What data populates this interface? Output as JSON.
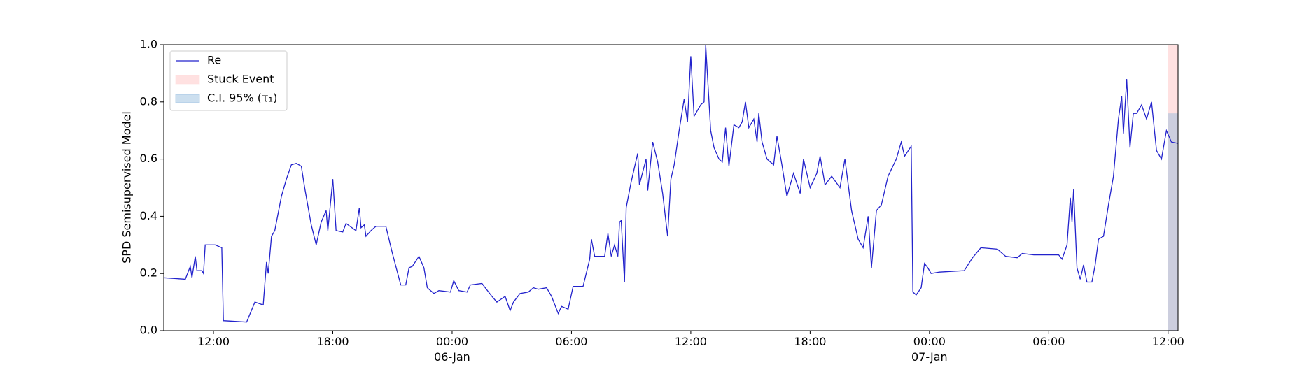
{
  "chart_data": {
    "type": "line",
    "y_label": "SPD Semisupervised Model",
    "xlim": [
      "1900-01-05 09:30",
      "1900-01-07 12:30"
    ],
    "xticks": [
      {
        "value": "1900-01-05 12:00",
        "label": "12:00"
      },
      {
        "value": "1900-01-05 18:00",
        "label": "18:00"
      },
      {
        "value": "1900-01-06 00:00",
        "label": "00:00\n06-Jan\n1900"
      },
      {
        "value": "1900-01-06 06:00",
        "label": "06:00"
      },
      {
        "value": "1900-01-06 12:00",
        "label": "12:00"
      },
      {
        "value": "1900-01-06 18:00",
        "label": "18:00"
      },
      {
        "value": "1900-01-07 00:00",
        "label": "00:00\n07-Jan"
      },
      {
        "value": "1900-01-07 06:00",
        "label": "06:00"
      },
      {
        "value": "1900-01-07 12:00",
        "label": "12:00"
      }
    ],
    "ylim": [
      0,
      1
    ],
    "yticks": [
      {
        "value": 0,
        "label": "0.0"
      },
      0.2,
      0.4,
      0.6,
      0.8,
      {
        "value": 1,
        "label": "1.0"
      }
    ],
    "legend": "upper left",
    "x": [
      "1900-01-05 09:30",
      "1900-01-05 10:35",
      "1900-01-05 10:50",
      "1900-01-05 10:55",
      "1900-01-05 11:05",
      "1900-01-05 11:10",
      "1900-01-05 11:25",
      "1900-01-05 11:30",
      "1900-01-05 11:35",
      "1900-01-05 12:05",
      "1900-01-05 12:25",
      "1900-01-05 12:30",
      "1900-01-05 13:40",
      "1900-01-05 14:05",
      "1900-01-05 14:30",
      "1900-01-05 14:40",
      "1900-01-05 14:45",
      "1900-01-05 14:55",
      "1900-01-05 15:05",
      "1900-01-05 15:25",
      "1900-01-05 15:40",
      "1900-01-05 15:55",
      "1900-01-05 16:10",
      "1900-01-05 16:25",
      "1900-01-05 16:35",
      "1900-01-05 16:55",
      "1900-01-05 17:10",
      "1900-01-05 17:25",
      "1900-01-05 17:40",
      "1900-01-05 17:45",
      "1900-01-05 18:00",
      "1900-01-05 18:10",
      "1900-01-05 18:30",
      "1900-01-05 18:40",
      "1900-01-05 19:10",
      "1900-01-05 19:20",
      "1900-01-05 19:25",
      "1900-01-05 19:35",
      "1900-01-05 19:40",
      "1900-01-05 19:55",
      "1900-01-05 20:10",
      "1900-01-05 20:40",
      "1900-01-05 21:00",
      "1900-01-05 21:25",
      "1900-01-05 21:40",
      "1900-01-05 21:50",
      "1900-01-05 22:00",
      "1900-01-05 22:20",
      "1900-01-05 22:35",
      "1900-01-05 22:45",
      "1900-01-05 23:05",
      "1900-01-05 23:20",
      "1900-01-05 23:55",
      "1900-01-06 00:05",
      "1900-01-06 00:20",
      "1900-01-06 00:45",
      "1900-01-06 00:55",
      "1900-01-06 01:30",
      "1900-01-06 01:40",
      "1900-01-06 02:00",
      "1900-01-06 02:15",
      "1900-01-06 02:40",
      "1900-01-06 02:55",
      "1900-01-06 03:05",
      "1900-01-06 03:25",
      "1900-01-06 03:50",
      "1900-01-06 04:05",
      "1900-01-06 04:20",
      "1900-01-06 04:45",
      "1900-01-06 05:00",
      "1900-01-06 05:20",
      "1900-01-06 05:30",
      "1900-01-06 05:50",
      "1900-01-06 06:05",
      "1900-01-06 06:35",
      "1900-01-06 06:55",
      "1900-01-06 07:00",
      "1900-01-06 07:10",
      "1900-01-06 07:40",
      "1900-01-06 07:50",
      "1900-01-06 08:00",
      "1900-01-06 08:10",
      "1900-01-06 08:20",
      "1900-01-06 08:25",
      "1900-01-06 08:30",
      "1900-01-06 08:40",
      "1900-01-06 08:45",
      "1900-01-06 09:00",
      "1900-01-06 09:20",
      "1900-01-06 09:25",
      "1900-01-06 09:45",
      "1900-01-06 09:50",
      "1900-01-06 10:05",
      "1900-01-06 10:20",
      "1900-01-06 10:35",
      "1900-01-06 10:50",
      "1900-01-06 11:00",
      "1900-01-06 11:10",
      "1900-01-06 11:25",
      "1900-01-06 11:40",
      "1900-01-06 11:50",
      "1900-01-06 12:00",
      "1900-01-06 12:10",
      "1900-01-06 12:30",
      "1900-01-06 12:40",
      "1900-01-06 12:45",
      "1900-01-06 13:00",
      "1900-01-06 13:10",
      "1900-01-06 13:25",
      "1900-01-06 13:35",
      "1900-01-06 13:45",
      "1900-01-06 13:55",
      "1900-01-06 14:10",
      "1900-01-06 14:25",
      "1900-01-06 14:35",
      "1900-01-06 14:45",
      "1900-01-06 14:55",
      "1900-01-06 15:10",
      "1900-01-06 15:20",
      "1900-01-06 15:25",
      "1900-01-06 15:35",
      "1900-01-06 15:50",
      "1900-01-06 16:10",
      "1900-01-06 16:20",
      "1900-01-06 16:35",
      "1900-01-06 16:50",
      "1900-01-06 17:10",
      "1900-01-06 17:30",
      "1900-01-06 17:40",
      "1900-01-06 18:00",
      "1900-01-06 18:20",
      "1900-01-06 18:30",
      "1900-01-06 18:45",
      "1900-01-06 19:05",
      "1900-01-06 19:30",
      "1900-01-06 19:45",
      "1900-01-06 20:05",
      "1900-01-06 20:25",
      "1900-01-06 20:40",
      "1900-01-06 20:55",
      "1900-01-06 21:05",
      "1900-01-06 21:20",
      "1900-01-06 21:35",
      "1900-01-06 21:55",
      "1900-01-06 22:20",
      "1900-01-06 22:35",
      "1900-01-06 22:45",
      "1900-01-06 23:05",
      "1900-01-06 23:10",
      "1900-01-06 23:20",
      "1900-01-06 23:35",
      "1900-01-06 23:45",
      "1900-01-06 23:55",
      "1900-01-07 00:05",
      "1900-01-07 00:30",
      "1900-01-07 01:45",
      "1900-01-07 02:10",
      "1900-01-07 02:35",
      "1900-01-07 03:25",
      "1900-01-07 03:50",
      "1900-01-07 04:25",
      "1900-01-07 04:40",
      "1900-01-07 05:15",
      "1900-01-07 06:30",
      "1900-01-07 06:40",
      "1900-01-07 06:55",
      "1900-01-07 07:05",
      "1900-01-07 07:10",
      "1900-01-07 07:15",
      "1900-01-07 07:25",
      "1900-01-07 07:35",
      "1900-01-07 07:45",
      "1900-01-07 07:55",
      "1900-01-07 08:10",
      "1900-01-07 08:20",
      "1900-01-07 08:30",
      "1900-01-07 08:45",
      "1900-01-07 09:00",
      "1900-01-07 09:15",
      "1900-01-07 09:30",
      "1900-01-07 09:40",
      "1900-01-07 09:45",
      "1900-01-07 09:55",
      "1900-01-07 10:05",
      "1900-01-07 10:15",
      "1900-01-07 10:25",
      "1900-01-07 10:40",
      "1900-01-07 10:55",
      "1900-01-07 11:10",
      "1900-01-07 11:25",
      "1900-01-07 11:40",
      "1900-01-07 11:55",
      "1900-01-07 12:10",
      "1900-01-07 12:30"
    ],
    "series": [
      {
        "name": "Re",
        "color": "#2222cc",
        "values": [
          0.185,
          0.18,
          0.225,
          0.185,
          0.26,
          0.21,
          0.21,
          0.2,
          0.3,
          0.3,
          0.29,
          0.035,
          0.03,
          0.1,
          0.09,
          0.24,
          0.2,
          0.33,
          0.35,
          0.47,
          0.53,
          0.58,
          0.585,
          0.575,
          0.5,
          0.37,
          0.3,
          0.38,
          0.42,
          0.35,
          0.53,
          0.35,
          0.345,
          0.375,
          0.35,
          0.43,
          0.36,
          0.37,
          0.33,
          0.35,
          0.365,
          0.365,
          0.27,
          0.16,
          0.16,
          0.22,
          0.225,
          0.26,
          0.22,
          0.15,
          0.13,
          0.14,
          0.135,
          0.175,
          0.14,
          0.135,
          0.16,
          0.165,
          0.15,
          0.12,
          0.1,
          0.12,
          0.07,
          0.1,
          0.13,
          0.135,
          0.15,
          0.145,
          0.15,
          0.12,
          0.06,
          0.085,
          0.075,
          0.155,
          0.155,
          0.25,
          0.32,
          0.26,
          0.26,
          0.34,
          0.26,
          0.3,
          0.26,
          0.38,
          0.385,
          0.17,
          0.43,
          0.52,
          0.62,
          0.51,
          0.6,
          0.49,
          0.66,
          0.59,
          0.48,
          0.33,
          0.53,
          0.58,
          0.7,
          0.81,
          0.73,
          0.96,
          0.75,
          0.79,
          0.8,
          1.0,
          0.7,
          0.64,
          0.6,
          0.59,
          0.71,
          0.575,
          0.72,
          0.71,
          0.73,
          0.8,
          0.71,
          0.74,
          0.66,
          0.76,
          0.66,
          0.6,
          0.58,
          0.68,
          0.58,
          0.47,
          0.55,
          0.48,
          0.6,
          0.5,
          0.55,
          0.61,
          0.51,
          0.54,
          0.5,
          0.6,
          0.42,
          0.32,
          0.29,
          0.4,
          0.22,
          0.42,
          0.44,
          0.54,
          0.6,
          0.66,
          0.61,
          0.645,
          0.135,
          0.125,
          0.15,
          0.235,
          0.22,
          0.2,
          0.205,
          0.21,
          0.255,
          0.29,
          0.285,
          0.26,
          0.255,
          0.27,
          0.265,
          0.265,
          0.25,
          0.3,
          0.465,
          0.38,
          0.495,
          0.22,
          0.18,
          0.23,
          0.17,
          0.17,
          0.23,
          0.32,
          0.33,
          0.44,
          0.54,
          0.74,
          0.82,
          0.69,
          0.88,
          0.64,
          0.76,
          0.76,
          0.79,
          0.74,
          0.8,
          0.63,
          0.6,
          0.7,
          0.66,
          0.655
        ]
      }
    ],
    "regions": [
      {
        "name": "Stuck Event",
        "color": "#ffdede",
        "x": [
          "1900-01-07 12:00",
          "1900-01-07 12:30"
        ]
      },
      {
        "name": "C.I. 95% (τ₁)",
        "color": "#8fb8dc",
        "x": [
          "1900-01-07 12:00",
          "1900-01-07 12:30"
        ],
        "y": [
          0,
          0.76
        ]
      }
    ]
  }
}
